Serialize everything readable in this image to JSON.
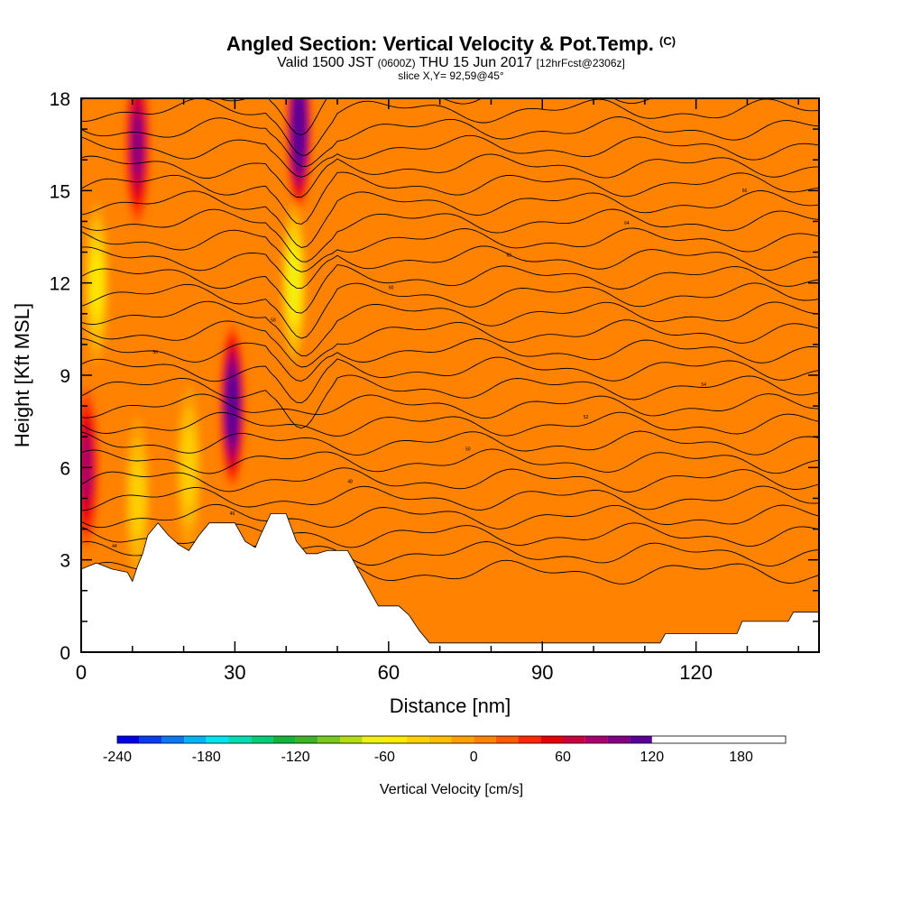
{
  "header": {
    "title": "Angled Section: Vertical Velocity & Pot.Temp.",
    "title_units": "(C)",
    "valid_prefix": "Valid 1500 JST",
    "valid_zulu": "(0600Z)",
    "valid_date": "THU 15 Jun 2017",
    "forecast": "[12hrFcst@2306z]",
    "slice": "slice X,Y= 92,59@45°"
  },
  "chart_data": {
    "type": "heatmap",
    "title": "Angled Section: Vertical Velocity & Pot.Temp.",
    "xlabel": "Distance [nm]",
    "ylabel": "Height [Kft MSL]",
    "xlim": [
      0,
      144
    ],
    "ylim": [
      0,
      18
    ],
    "xticks": [
      0,
      30,
      60,
      90,
      120
    ],
    "yticks": [
      0,
      3,
      6,
      9,
      12,
      15,
      18
    ],
    "colorbar": {
      "label": "Vertical Velocity [cm/s]",
      "min": -240,
      "max": 210,
      "step": 15,
      "tick_values": [
        -240,
        -180,
        -120,
        -60,
        0,
        60,
        120,
        180
      ],
      "tick_labels": [
        "-240",
        "-180",
        "-120",
        "-60",
        "0",
        "60",
        "120",
        "180"
      ],
      "colors": [
        "#0000e6",
        "#0a3cf0",
        "#0a78f0",
        "#00b4f5",
        "#00e6f0",
        "#00dcb4",
        "#00cd78",
        "#14b43c",
        "#3cb428",
        "#78c81e",
        "#b4dc14",
        "#f0f014",
        "#ffeb00",
        "#ffd200",
        "#ffbe00",
        "#ffa000",
        "#ff8200",
        "#ff5a00",
        "#ff2800",
        "#e6000a",
        "#c8003c",
        "#aa006e",
        "#820082",
        "#5a0096"
      ]
    },
    "background_value_cm_s": 5,
    "features": [
      {
        "kind": "updraft",
        "x_nm": 29.5,
        "z_kft": 8.0,
        "peak_cm_s": 140
      },
      {
        "kind": "updraft",
        "x_nm": 42.5,
        "z_kft": 17.0,
        "peak_cm_s": 150
      },
      {
        "kind": "updraft",
        "x_nm": 11,
        "z_kft": 16.5,
        "peak_cm_s": 90
      },
      {
        "kind": "updraft",
        "x_nm": 1,
        "z_kft": 6.0,
        "peak_cm_s": 70
      },
      {
        "kind": "downdraft",
        "x_nm": 41.5,
        "z_kft": 12.0,
        "peak_cm_s": -80
      },
      {
        "kind": "downdraft",
        "x_nm": 3,
        "z_kft": 12.0,
        "peak_cm_s": -60
      },
      {
        "kind": "downdraft",
        "x_nm": 21,
        "z_kft": 6.0,
        "peak_cm_s": -40
      },
      {
        "kind": "downdraft",
        "x_nm": 11,
        "z_kft": 5.0,
        "peak_cm_s": -50
      }
    ],
    "terrain_kft": [
      [
        0,
        2.7
      ],
      [
        3,
        2.9
      ],
      [
        6,
        2.7
      ],
      [
        9,
        2.6
      ],
      [
        10,
        2.3
      ],
      [
        11,
        2.8
      ],
      [
        12,
        3.2
      ],
      [
        13,
        3.8
      ],
      [
        15,
        4.2
      ],
      [
        17,
        3.8
      ],
      [
        19,
        3.5
      ],
      [
        21,
        3.3
      ],
      [
        23,
        3.8
      ],
      [
        25,
        4.2
      ],
      [
        30,
        4.2
      ],
      [
        32,
        3.6
      ],
      [
        34,
        3.4
      ],
      [
        35,
        3.8
      ],
      [
        37,
        4.5
      ],
      [
        40,
        4.5
      ],
      [
        42,
        3.6
      ],
      [
        44,
        3.2
      ],
      [
        46,
        3.2
      ],
      [
        48,
        3.3
      ],
      [
        52,
        3.3
      ],
      [
        54,
        2.7
      ],
      [
        56,
        2.1
      ],
      [
        58,
        1.5
      ],
      [
        62,
        1.5
      ],
      [
        64,
        1.2
      ],
      [
        66,
        0.7
      ],
      [
        68,
        0.3
      ],
      [
        113,
        0.3
      ],
      [
        114,
        0.6
      ],
      [
        128,
        0.6
      ],
      [
        129,
        1.0
      ],
      [
        138,
        1.0
      ],
      [
        139,
        1.3
      ],
      [
        144,
        1.3
      ]
    ],
    "contour_labels": [
      "44",
      "46",
      "48",
      "50",
      "52",
      "54",
      "56",
      "58",
      "60",
      "62",
      "64",
      "66"
    ],
    "theta_levels_count": 27
  }
}
